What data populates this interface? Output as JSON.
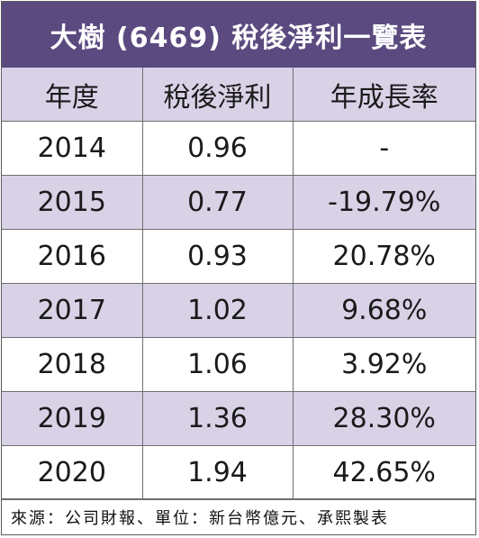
{
  "title": "大樹 (6469) 稅後淨利一覽表",
  "headers": [
    "年度",
    "稅後淨利",
    "年成長率"
  ],
  "rows": [
    {
      "year": "2014",
      "profit": "0.96",
      "growth": "-"
    },
    {
      "year": "2015",
      "profit": "0.77",
      "growth": "-19.79%"
    },
    {
      "year": "2016",
      "profit": "0.93",
      "growth": "20.78%"
    },
    {
      "year": "2017",
      "profit": "1.02",
      "growth": "9.68%"
    },
    {
      "year": "2018",
      "profit": "1.06",
      "growth": "3.92%"
    },
    {
      "year": "2019",
      "profit": "1.36",
      "growth": "28.30%"
    },
    {
      "year": "2020",
      "profit": "1.94",
      "growth": "42.65%"
    }
  ],
  "footer": "來源：公司財報、單位：新台幣億元、承熙製表",
  "colors": {
    "title_bg": "#5b4a7f",
    "shade_row": "#d9d2e7",
    "title_text": "#ffffff"
  }
}
